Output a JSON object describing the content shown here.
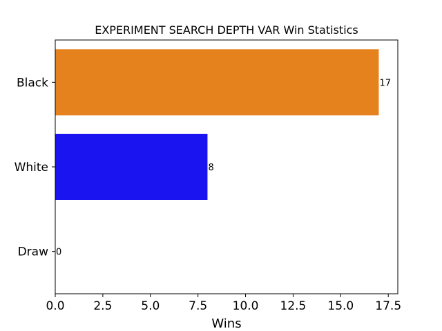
{
  "chart_data": {
    "type": "bar",
    "orientation": "horizontal",
    "title": "EXPERIMENT SEARCH DEPTH VAR Win Statistics",
    "xlabel": "Wins",
    "ylabel": "",
    "categories": [
      "Black",
      "White",
      "Draw"
    ],
    "values": [
      17,
      8,
      0
    ],
    "value_labels": [
      "17",
      "8",
      "0"
    ],
    "colors": [
      "#e6821e",
      "#1a14f0",
      "#ffffff"
    ],
    "xlim": [
      0,
      18
    ],
    "xticks": [
      0,
      2.5,
      5,
      7.5,
      10,
      12.5,
      15,
      17.5
    ],
    "xtick_labels": [
      "0.0",
      "2.5",
      "5.0",
      "7.5",
      "10.0",
      "12.5",
      "15.0",
      "17.5"
    ],
    "grid": false,
    "legend": "none"
  }
}
